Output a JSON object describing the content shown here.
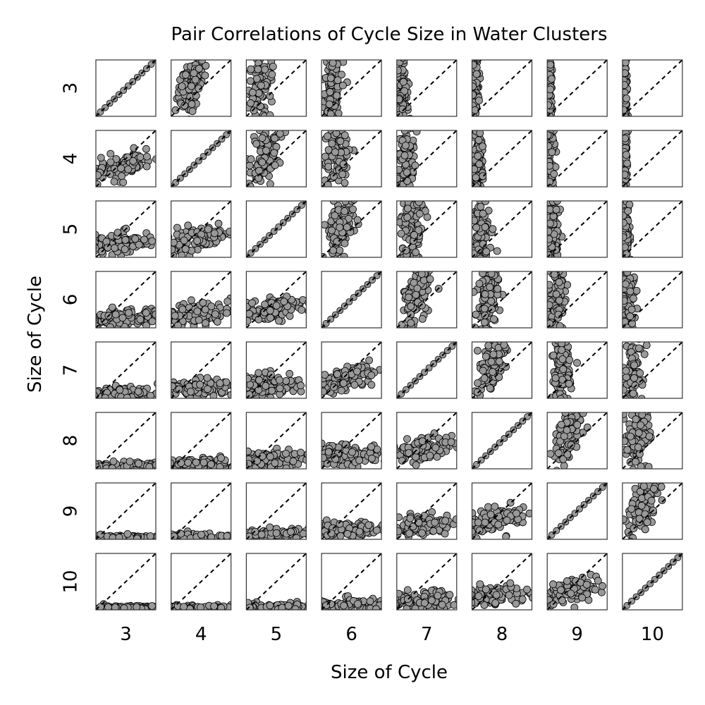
{
  "chart_data": {
    "type": "scatter",
    "title": "Pair Correlations of Cycle Size in Water Clusters",
    "xlabel": "Size of Cycle",
    "ylabel": "Size of Cycle",
    "cycle_sizes": [
      "3",
      "4",
      "5",
      "6",
      "7",
      "8",
      "9",
      "10"
    ],
    "layout": "pairwise-grid",
    "diagonal_reference_line": "dashed y = x",
    "marker_color": "#999999",
    "marker_edge_color": "#000000",
    "grid": false,
    "panel_ticks": false
  }
}
